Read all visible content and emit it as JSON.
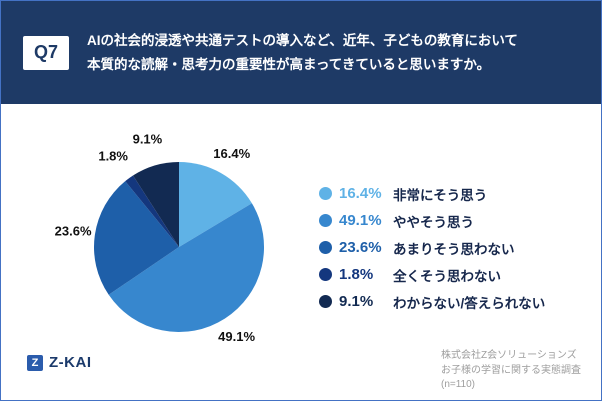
{
  "header": {
    "q_label": "Q7",
    "question": "AIの社会的浸透や共通テストの導入など、近年、子どもの教育において本質的な読解・思考力の重要性が高まってきていると思いますか。"
  },
  "chart_data": {
    "type": "pie",
    "title": "",
    "start_angle": "top",
    "direction": "clockwise",
    "value_suffix": "%",
    "legend_position": "right",
    "slices": [
      {
        "label": "非常にそう思う",
        "value": 16.4,
        "color": "#5FB2E6"
      },
      {
        "label": "ややそう思う",
        "value": 49.1,
        "color": "#3787CE"
      },
      {
        "label": "あまりそう思わない",
        "value": 23.6,
        "color": "#1E5FA9"
      },
      {
        "label": "全くそう思わない",
        "value": 1.8,
        "color": "#14377E"
      },
      {
        "label": "わからない/答えられない",
        "value": 9.1,
        "color": "#122A52"
      }
    ]
  },
  "theme": {
    "header_bg": "#1E3A66",
    "frame_border": "#4472C4",
    "legend_text": "#16274C"
  },
  "footer": {
    "logo_text": "Z-KAI",
    "source_lines": [
      "株式会社Z会ソリューションズ",
      "お子様の学習に関する実態調査",
      "(n=110)"
    ]
  }
}
